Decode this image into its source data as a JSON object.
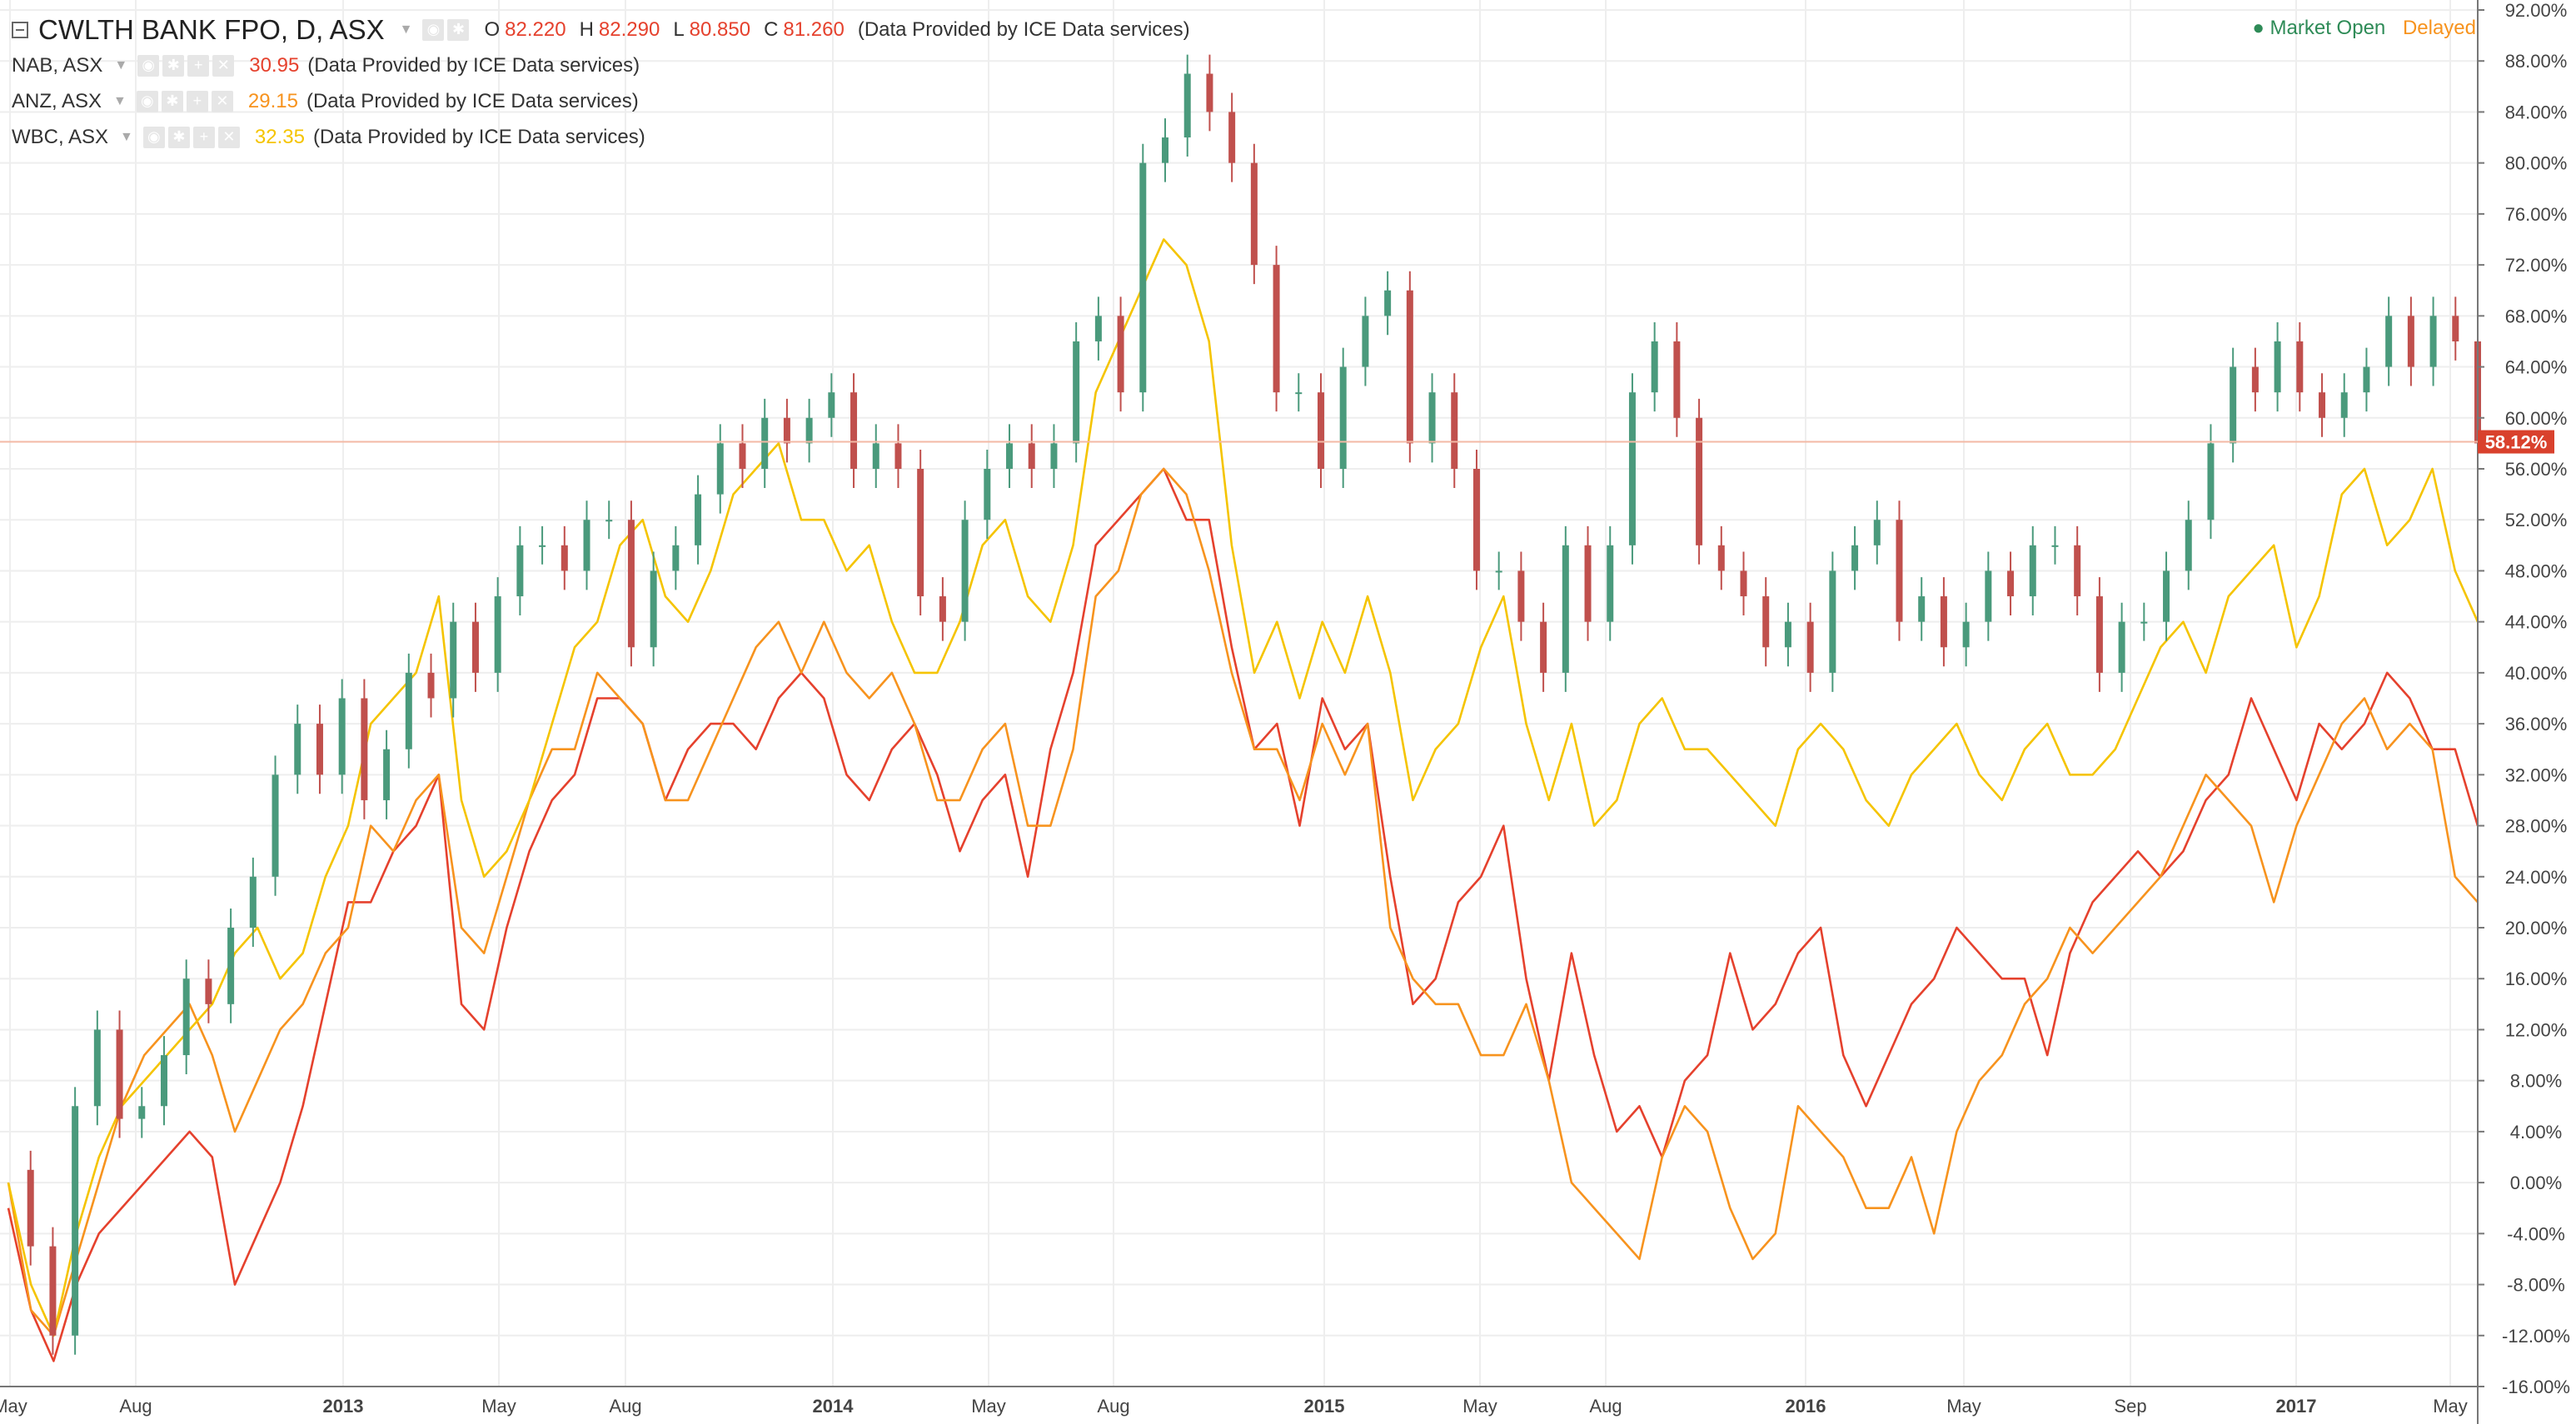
{
  "header": {
    "main_symbol": "CWLTH BANK FPO, D, ASX",
    "ohlc": {
      "o_label": "O",
      "o": "82.220",
      "h_label": "H",
      "h": "82.290",
      "l_label": "L",
      "l": "80.850",
      "c_label": "C",
      "c": "81.260"
    },
    "provider": "(Data Provided by ICE Data services)",
    "status_open": "Market Open",
    "status_delayed": "Delayed"
  },
  "legend": [
    {
      "symbol": "NAB, ASX",
      "value": "30.95",
      "color": "#e5412d",
      "note": "(Data Provided by ICE Data services)"
    },
    {
      "symbol": "ANZ, ASX",
      "value": "29.15",
      "color": "#f7931e",
      "note": "(Data Provided by ICE Data services)"
    },
    {
      "symbol": "WBC, ASX",
      "value": "32.35",
      "color": "#f5c400",
      "note": "(Data Provided by ICE Data services)"
    }
  ],
  "colors": {
    "up": "#4a9a7c",
    "down": "#c0504d",
    "nab": "#e5412d",
    "anz": "#f7931e",
    "wbc": "#f5c400",
    "grid": "#eeeeee"
  },
  "chart_data": {
    "type": "line",
    "x_ticks": [
      "May",
      "Aug",
      "2013",
      "May",
      "Aug",
      "2014",
      "May",
      "Aug",
      "2015",
      "May",
      "Aug",
      "2016",
      "May",
      "Sep",
      "2017",
      "May"
    ],
    "y_ticks": [
      "92.00%",
      "88.00%",
      "84.00%",
      "80.00%",
      "76.00%",
      "72.00%",
      "68.00%",
      "64.00%",
      "60.00%",
      "56.00%",
      "52.00%",
      "48.00%",
      "44.00%",
      "40.00%",
      "36.00%",
      "32.00%",
      "28.00%",
      "24.00%",
      "20.00%",
      "16.00%",
      "12.00%",
      "8.00%",
      "4.00%",
      "0.00%",
      "-4.00%",
      "-8.00%",
      "-12.00%",
      "-16.00%"
    ],
    "ylim": [
      -16,
      92
    ],
    "current_label": "58.12%",
    "current_value": 58.12,
    "series": [
      {
        "name": "CWLTH BANK FPO, D, ASX",
        "style": "candles",
        "values": [
          1,
          -5,
          -12,
          6,
          12,
          5,
          6,
          10,
          16,
          14,
          20,
          24,
          32,
          36,
          32,
          38,
          30,
          34,
          40,
          38,
          44,
          40,
          46,
          50,
          50,
          48,
          52,
          52,
          42,
          48,
          50,
          54,
          58,
          56,
          60,
          58,
          60,
          62,
          56,
          58,
          56,
          46,
          44,
          52,
          56,
          58,
          56,
          58,
          66,
          68,
          62,
          80,
          82,
          87,
          84,
          80,
          72,
          62,
          62,
          56,
          64,
          68,
          70,
          58,
          62,
          56,
          48,
          48,
          44,
          40,
          50,
          44,
          50,
          62,
          66,
          60,
          50,
          48,
          46,
          42,
          44,
          40,
          48,
          50,
          52,
          44,
          46,
          42,
          44,
          48,
          46,
          50,
          50,
          46,
          40,
          44,
          44,
          48,
          52,
          58,
          64,
          62,
          66,
          62,
          60,
          62,
          64,
          68,
          64,
          68,
          66,
          58
        ]
      },
      {
        "name": "NAB, ASX",
        "values": [
          -2,
          -10,
          -14,
          -8,
          -4,
          -2,
          0,
          2,
          4,
          2,
          -8,
          -4,
          0,
          6,
          14,
          22,
          22,
          26,
          28,
          32,
          14,
          12,
          20,
          26,
          30,
          32,
          38,
          38,
          36,
          30,
          34,
          36,
          36,
          34,
          38,
          40,
          38,
          32,
          30,
          34,
          36,
          32,
          26,
          30,
          32,
          24,
          34,
          40,
          50,
          52,
          54,
          56,
          52,
          52,
          42,
          34,
          36,
          28,
          38,
          34,
          36,
          24,
          14,
          16,
          22,
          24,
          28,
          16,
          8,
          18,
          10,
          4,
          6,
          2,
          8,
          10,
          18,
          12,
          14,
          18,
          20,
          10,
          6,
          10,
          14,
          16,
          20,
          18,
          16,
          16,
          10,
          18,
          22,
          24,
          26,
          24,
          26,
          30,
          32,
          38,
          34,
          30,
          36,
          34,
          36,
          40,
          38,
          34,
          34,
          28
        ]
      },
      {
        "name": "ANZ, ASX",
        "values": [
          0,
          -10,
          -12,
          -6,
          0,
          6,
          10,
          12,
          14,
          10,
          4,
          8,
          12,
          14,
          18,
          20,
          28,
          26,
          30,
          32,
          20,
          18,
          24,
          30,
          34,
          34,
          40,
          38,
          36,
          30,
          30,
          34,
          38,
          42,
          44,
          40,
          44,
          40,
          38,
          40,
          36,
          30,
          30,
          34,
          36,
          28,
          28,
          34,
          46,
          48,
          54,
          56,
          54,
          48,
          40,
          34,
          34,
          30,
          36,
          32,
          36,
          20,
          16,
          14,
          14,
          10,
          10,
          14,
          8,
          0,
          -2,
          -4,
          -6,
          2,
          6,
          4,
          -2,
          -6,
          -4,
          6,
          4,
          2,
          -2,
          -2,
          2,
          -4,
          4,
          8,
          10,
          14,
          16,
          20,
          18,
          20,
          22,
          24,
          28,
          32,
          30,
          28,
          22,
          28,
          32,
          36,
          38,
          34,
          36,
          34,
          24,
          22
        ]
      },
      {
        "name": "WBC, ASX",
        "values": [
          0,
          -8,
          -12,
          -4,
          2,
          6,
          8,
          10,
          12,
          14,
          18,
          20,
          16,
          18,
          24,
          28,
          36,
          38,
          40,
          46,
          30,
          24,
          26,
          30,
          36,
          42,
          44,
          50,
          52,
          46,
          44,
          48,
          54,
          56,
          58,
          52,
          52,
          48,
          50,
          44,
          40,
          40,
          44,
          50,
          52,
          46,
          44,
          50,
          62,
          66,
          70,
          74,
          72,
          66,
          50,
          40,
          44,
          38,
          44,
          40,
          46,
          40,
          30,
          34,
          36,
          42,
          46,
          36,
          30,
          36,
          28,
          30,
          36,
          38,
          34,
          34,
          32,
          30,
          28,
          34,
          36,
          34,
          30,
          28,
          32,
          34,
          36,
          32,
          30,
          34,
          36,
          32,
          32,
          34,
          38,
          42,
          44,
          40,
          46,
          48,
          50,
          42,
          46,
          54,
          56,
          50,
          52,
          56,
          48,
          44
        ]
      }
    ]
  }
}
